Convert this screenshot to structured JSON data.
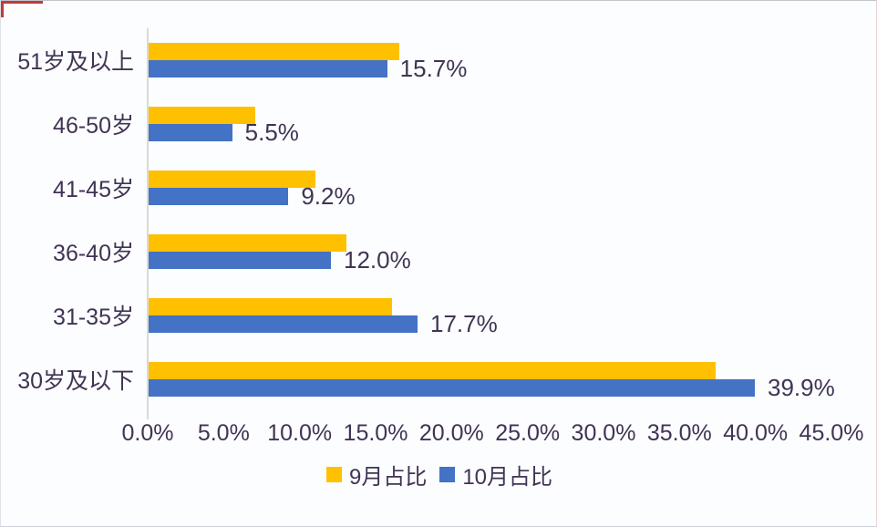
{
  "page": {
    "background": "#fcfdfe",
    "edge_artifact_color": "#c13b3b",
    "text_color": "#403454",
    "axis_line_color": "#d9d9d9"
  },
  "chart_data": {
    "type": "bar",
    "orientation": "horizontal",
    "title": "",
    "xlabel": "",
    "ylabel": "",
    "categories_top_to_bottom": [
      "51岁及以上",
      "46-50岁",
      "41-45岁",
      "36-40岁",
      "31-35岁",
      "30岁及以下"
    ],
    "series": [
      {
        "name": "9月占比",
        "color": "#FFC000",
        "values": [
          16.5,
          7.0,
          11.0,
          13.0,
          16.0,
          37.3
        ],
        "values_note": "estimated from bar lengths; no data labels shown",
        "show_labels": false
      },
      {
        "name": "10月占比",
        "color": "#4472C4",
        "values": [
          15.7,
          5.5,
          9.2,
          12.0,
          17.7,
          39.9
        ],
        "labels": [
          "15.7%",
          "5.5%",
          "9.2%",
          "12.0%",
          "17.7%",
          "39.9%"
        ],
        "show_labels": true
      }
    ],
    "x_ticks": [
      "0.0%",
      "5.0%",
      "10.0%",
      "15.0%",
      "20.0%",
      "25.0%",
      "30.0%",
      "35.0%",
      "40.0%",
      "45.0%"
    ],
    "xlim": [
      0,
      45
    ],
    "grid": false,
    "legend_position": "bottom-center"
  }
}
